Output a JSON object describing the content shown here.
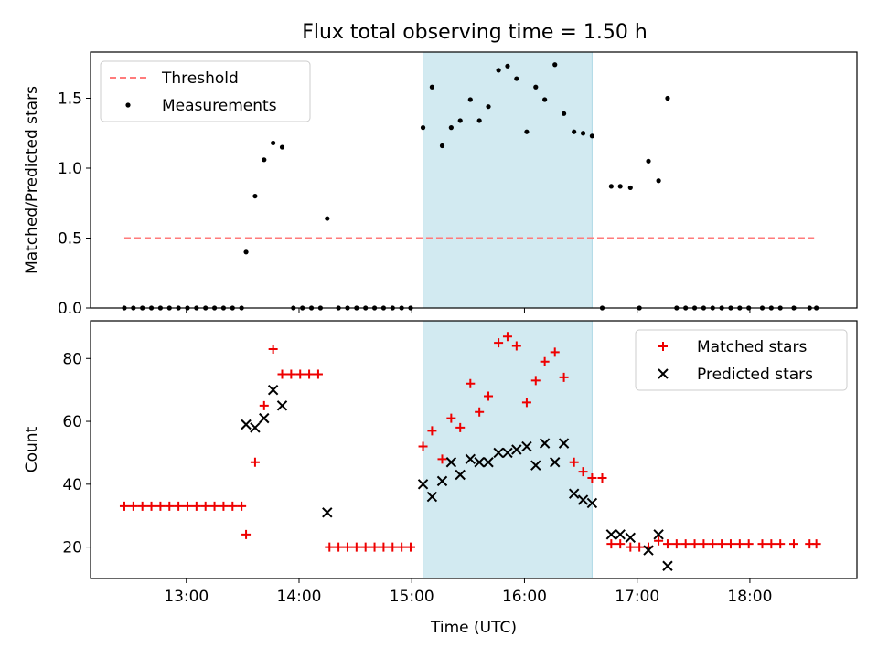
{
  "title": "Flux total observing time = 1.50 h",
  "colors": {
    "threshold": "#ff7b7b",
    "measurement": "#000000",
    "matched": "#ee0000",
    "predicted": "#000000",
    "highlight": "#add8e6"
  },
  "chart_data": [
    {
      "type": "scatter",
      "xlabel": "",
      "ylabel": "Matched/Predicted stars",
      "x_unit": "hours UTC",
      "xlim": [
        12.15,
        18.95
      ],
      "ylim": [
        0,
        1.83
      ],
      "yticks": [
        0.0,
        0.5,
        1.0,
        1.5
      ],
      "ytick_labels": [
        "0.0",
        "0.5",
        "1.0",
        "1.5"
      ],
      "xticks": [
        13,
        14,
        15,
        16,
        17,
        18
      ],
      "xtick_labels": [],
      "legend": {
        "position": "top-left",
        "entries": [
          "Threshold",
          "Measurements"
        ]
      },
      "highlight_span": [
        15.1,
        16.6
      ],
      "series": [
        {
          "name": "Threshold",
          "style": "dashed-line",
          "points": [
            [
              12.45,
              0.5
            ],
            [
              18.57,
              0.5
            ]
          ]
        },
        {
          "name": "Measurements",
          "style": "dot",
          "points": [
            [
              12.45,
              0
            ],
            [
              12.53,
              0
            ],
            [
              12.61,
              0
            ],
            [
              12.69,
              0
            ],
            [
              12.77,
              0
            ],
            [
              12.85,
              0
            ],
            [
              12.93,
              0
            ],
            [
              13.01,
              0
            ],
            [
              13.09,
              0
            ],
            [
              13.17,
              0
            ],
            [
              13.25,
              0
            ],
            [
              13.33,
              0
            ],
            [
              13.41,
              0
            ],
            [
              13.49,
              0
            ],
            [
              13.53,
              0.4
            ],
            [
              13.61,
              0.8
            ],
            [
              13.69,
              1.06
            ],
            [
              13.77,
              1.18
            ],
            [
              13.85,
              1.15
            ],
            [
              13.95,
              0
            ],
            [
              14.03,
              0
            ],
            [
              14.11,
              0
            ],
            [
              14.19,
              0
            ],
            [
              14.25,
              0.64
            ],
            [
              14.35,
              0
            ],
            [
              14.43,
              0
            ],
            [
              14.51,
              0
            ],
            [
              14.59,
              0
            ],
            [
              14.67,
              0
            ],
            [
              14.75,
              0
            ],
            [
              14.83,
              0
            ],
            [
              14.91,
              0
            ],
            [
              14.99,
              0
            ],
            [
              15.1,
              1.29
            ],
            [
              15.18,
              1.58
            ],
            [
              15.27,
              1.16
            ],
            [
              15.35,
              1.29
            ],
            [
              15.43,
              1.34
            ],
            [
              15.52,
              1.49
            ],
            [
              15.6,
              1.34
            ],
            [
              15.68,
              1.44
            ],
            [
              15.77,
              1.7
            ],
            [
              15.85,
              1.73
            ],
            [
              15.93,
              1.64
            ],
            [
              16.02,
              1.26
            ],
            [
              16.1,
              1.58
            ],
            [
              16.18,
              1.49
            ],
            [
              16.27,
              1.74
            ],
            [
              16.35,
              1.39
            ],
            [
              16.44,
              1.26
            ],
            [
              16.52,
              1.25
            ],
            [
              16.6,
              1.23
            ],
            [
              16.69,
              0
            ],
            [
              16.77,
              0.87
            ],
            [
              16.85,
              0.87
            ],
            [
              16.94,
              0.86
            ],
            [
              17.02,
              0
            ],
            [
              17.1,
              1.05
            ],
            [
              17.19,
              0.91
            ],
            [
              17.27,
              1.5
            ],
            [
              17.35,
              0
            ],
            [
              17.43,
              0
            ],
            [
              17.51,
              0
            ],
            [
              17.59,
              0
            ],
            [
              17.67,
              0
            ],
            [
              17.75,
              0
            ],
            [
              17.83,
              0
            ],
            [
              17.91,
              0
            ],
            [
              17.99,
              0
            ],
            [
              18.11,
              0
            ],
            [
              18.19,
              0
            ],
            [
              18.27,
              0
            ],
            [
              18.39,
              0
            ],
            [
              18.53,
              0
            ],
            [
              18.59,
              0
            ]
          ]
        }
      ]
    },
    {
      "type": "scatter",
      "xlabel": "Time (UTC)",
      "ylabel": "Count",
      "x_unit": "hours UTC",
      "xlim": [
        12.15,
        18.95
      ],
      "ylim": [
        10,
        92
      ],
      "yticks": [
        20,
        40,
        60,
        80
      ],
      "ytick_labels": [
        "20",
        "40",
        "60",
        "80"
      ],
      "xticks": [
        13,
        14,
        15,
        16,
        17,
        18
      ],
      "xtick_labels": [
        "13:00",
        "14:00",
        "15:00",
        "16:00",
        "17:00",
        "18:00"
      ],
      "legend": {
        "position": "top-right",
        "entries": [
          "Matched stars",
          "Predicted stars"
        ]
      },
      "highlight_span": [
        15.1,
        16.6
      ],
      "series": [
        {
          "name": "Matched stars",
          "style": "plus",
          "points": [
            [
              12.45,
              33
            ],
            [
              12.53,
              33
            ],
            [
              12.61,
              33
            ],
            [
              12.69,
              33
            ],
            [
              12.77,
              33
            ],
            [
              12.85,
              33
            ],
            [
              12.93,
              33
            ],
            [
              13.01,
              33
            ],
            [
              13.09,
              33
            ],
            [
              13.17,
              33
            ],
            [
              13.25,
              33
            ],
            [
              13.33,
              33
            ],
            [
              13.41,
              33
            ],
            [
              13.49,
              33
            ],
            [
              13.53,
              24
            ],
            [
              13.61,
              47
            ],
            [
              13.69,
              65
            ],
            [
              13.77,
              83
            ],
            [
              13.85,
              75
            ],
            [
              13.93,
              75
            ],
            [
              14.01,
              75
            ],
            [
              14.09,
              75
            ],
            [
              14.17,
              75
            ],
            [
              14.27,
              20
            ],
            [
              14.35,
              20
            ],
            [
              14.43,
              20
            ],
            [
              14.51,
              20
            ],
            [
              14.59,
              20
            ],
            [
              14.67,
              20
            ],
            [
              14.75,
              20
            ],
            [
              14.83,
              20
            ],
            [
              14.91,
              20
            ],
            [
              14.99,
              20
            ],
            [
              15.1,
              52
            ],
            [
              15.18,
              57
            ],
            [
              15.27,
              48
            ],
            [
              15.35,
              61
            ],
            [
              15.43,
              58
            ],
            [
              15.52,
              72
            ],
            [
              15.6,
              63
            ],
            [
              15.68,
              68
            ],
            [
              15.77,
              85
            ],
            [
              15.85,
              87
            ],
            [
              15.93,
              84
            ],
            [
              16.02,
              66
            ],
            [
              16.1,
              73
            ],
            [
              16.18,
              79
            ],
            [
              16.27,
              82
            ],
            [
              16.35,
              74
            ],
            [
              16.44,
              47
            ],
            [
              16.52,
              44
            ],
            [
              16.6,
              42
            ],
            [
              16.69,
              42
            ],
            [
              16.77,
              21
            ],
            [
              16.85,
              21
            ],
            [
              16.94,
              20
            ],
            [
              17.02,
              20
            ],
            [
              17.1,
              20
            ],
            [
              17.19,
              22
            ],
            [
              17.27,
              21
            ],
            [
              17.35,
              21
            ],
            [
              17.43,
              21
            ],
            [
              17.51,
              21
            ],
            [
              17.59,
              21
            ],
            [
              17.67,
              21
            ],
            [
              17.75,
              21
            ],
            [
              17.83,
              21
            ],
            [
              17.91,
              21
            ],
            [
              17.99,
              21
            ],
            [
              18.11,
              21
            ],
            [
              18.19,
              21
            ],
            [
              18.27,
              21
            ],
            [
              18.39,
              21
            ],
            [
              18.53,
              21
            ],
            [
              18.59,
              21
            ]
          ]
        },
        {
          "name": "Predicted stars",
          "style": "x",
          "points": [
            [
              13.53,
              59
            ],
            [
              13.61,
              58
            ],
            [
              13.69,
              61
            ],
            [
              13.77,
              70
            ],
            [
              13.85,
              65
            ],
            [
              14.25,
              31
            ],
            [
              15.1,
              40
            ],
            [
              15.18,
              36
            ],
            [
              15.27,
              41
            ],
            [
              15.35,
              47
            ],
            [
              15.43,
              43
            ],
            [
              15.52,
              48
            ],
            [
              15.6,
              47
            ],
            [
              15.68,
              47
            ],
            [
              15.77,
              50
            ],
            [
              15.85,
              50
            ],
            [
              15.93,
              51
            ],
            [
              16.02,
              52
            ],
            [
              16.1,
              46
            ],
            [
              16.18,
              53
            ],
            [
              16.27,
              47
            ],
            [
              16.35,
              53
            ],
            [
              16.44,
              37
            ],
            [
              16.52,
              35
            ],
            [
              16.6,
              34
            ],
            [
              16.77,
              24
            ],
            [
              16.85,
              24
            ],
            [
              16.94,
              23
            ],
            [
              17.1,
              19
            ],
            [
              17.19,
              24
            ],
            [
              17.27,
              14
            ]
          ]
        }
      ]
    }
  ]
}
